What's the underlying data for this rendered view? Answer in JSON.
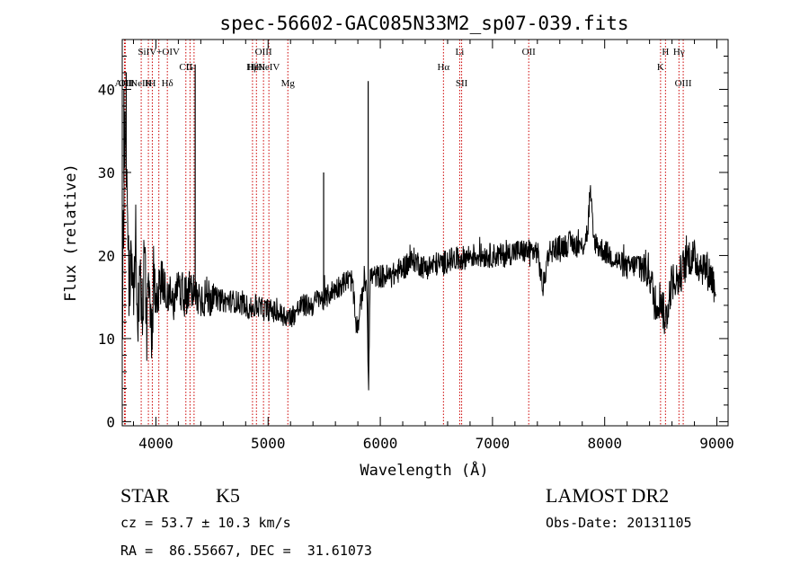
{
  "chart_data": {
    "type": "line",
    "title": "spec-56602-GAC085N33M2_sp07-039.fits",
    "xlabel": "Wavelength (Å)",
    "ylabel": "Flux (relative)",
    "xlim": [
      3700,
      9100
    ],
    "ylim": [
      -0.5,
      46
    ],
    "xticks": [
      4000,
      5000,
      6000,
      7000,
      8000,
      9000
    ],
    "yticks": [
      0,
      10,
      20,
      30,
      40
    ],
    "grid": false,
    "line_color": "#000000",
    "marker_color": "#cc0000",
    "spectrum": {
      "name": "",
      "x": [
        3700,
        3720,
        3740,
        3760,
        3780,
        3800,
        3820,
        3840,
        3860,
        3880,
        3900,
        3920,
        3940,
        3960,
        3980,
        4000,
        4050,
        4100,
        4150,
        4200,
        4250,
        4300,
        4350,
        4400,
        4500,
        4600,
        4700,
        4800,
        4850,
        4900,
        4950,
        5000,
        5100,
        5200,
        5300,
        5400,
        5450,
        5500,
        5550,
        5600,
        5650,
        5700,
        5750,
        5780,
        5800,
        5850,
        5880,
        5895,
        5910,
        5950,
        6000,
        6100,
        6200,
        6300,
        6400,
        6500,
        6560,
        6600,
        6700,
        6800,
        6900,
        7000,
        7100,
        7200,
        7300,
        7400,
        7450,
        7500,
        7600,
        7700,
        7800,
        7850,
        7870,
        7900,
        7950,
        8000,
        8100,
        8200,
        8300,
        8400,
        8450,
        8500,
        8540,
        8600,
        8650,
        8700,
        8750,
        8800,
        8850,
        8900,
        8950,
        8990
      ],
      "y": [
        10,
        35,
        28,
        17,
        20,
        14,
        22,
        13,
        19,
        12,
        21,
        11,
        20,
        9,
        18,
        15,
        17,
        16,
        14,
        17,
        15,
        16,
        15,
        15,
        15,
        14.5,
        14.5,
        14,
        13.5,
        14,
        13.5,
        13.5,
        13,
        12.5,
        14,
        14,
        15,
        14.5,
        15.5,
        16,
        16.5,
        17,
        17,
        12,
        11.5,
        16.5,
        17,
        4,
        17.5,
        17.5,
        17.5,
        17.5,
        18.5,
        19.5,
        18.5,
        19,
        19,
        19.5,
        19.5,
        20,
        20,
        20,
        20,
        20.5,
        20.5,
        20.5,
        16,
        20.5,
        21,
        21.5,
        21,
        23,
        28,
        22,
        21,
        20.5,
        19.5,
        18.5,
        19,
        18,
        14,
        15,
        12,
        17,
        17,
        18.5,
        20,
        19.5,
        19,
        18.5,
        17.5,
        16
      ]
    },
    "spikes": [
      {
        "x": 3715,
        "y": 40
      },
      {
        "x": 3735,
        "y": 42
      },
      {
        "x": 4350,
        "y": 43
      },
      {
        "x": 5495,
        "y": 30
      },
      {
        "x": 5892,
        "y": 41
      }
    ],
    "line_markers": [
      {
        "x": 3720,
        "row": 3,
        "label": "AlIII"
      },
      {
        "x": 3727,
        "row": 3,
        "label": "OII"
      },
      {
        "x": 3869,
        "row": 3,
        "label": "NeIII"
      },
      {
        "x": 3933,
        "row": 3,
        "label": "K"
      },
      {
        "x": 3968,
        "row": 3,
        "label": "H"
      },
      {
        "x": 4026,
        "row": 1,
        "label": "SiIV+OIV"
      },
      {
        "x": 4102,
        "row": 3,
        "label": "Hδ"
      },
      {
        "x": 4267,
        "row": 2,
        "label": "CII"
      },
      {
        "x": 4304,
        "row": 2,
        "label": "G"
      },
      {
        "x": 4340,
        "row": 1,
        "label": ""
      },
      {
        "x": 4861,
        "row": 2,
        "label": "Hβ"
      },
      {
        "x": 4896,
        "row": 2,
        "label": "HeII"
      },
      {
        "x": 4959,
        "row": 1,
        "label": "OIII"
      },
      {
        "x": 5007,
        "row": 2,
        "label": "NeIV"
      },
      {
        "x": 5176,
        "row": 3,
        "label": "Mg"
      },
      {
        "x": 6563,
        "row": 2,
        "label": "Hα"
      },
      {
        "x": 6708,
        "row": 1,
        "label": "Li"
      },
      {
        "x": 6725,
        "row": 3,
        "label": "SII"
      },
      {
        "x": 7323,
        "row": 1,
        "label": "OII"
      },
      {
        "x": 8498,
        "row": 2,
        "label": "K"
      },
      {
        "x": 8542,
        "row": 1,
        "label": "H"
      },
      {
        "x": 8662,
        "row": 1,
        "label": "Hγ"
      },
      {
        "x": 8700,
        "row": 3,
        "label": "OIII"
      }
    ]
  },
  "info": {
    "class_type": "STAR",
    "subclass": "K5",
    "cz": "cz = 53.7 ± 10.3 km/s",
    "coords": "RA =  86.55667, DEC =  31.61073",
    "survey": "LAMOST DR2",
    "obs_date": "Obs-Date: 20131105"
  }
}
